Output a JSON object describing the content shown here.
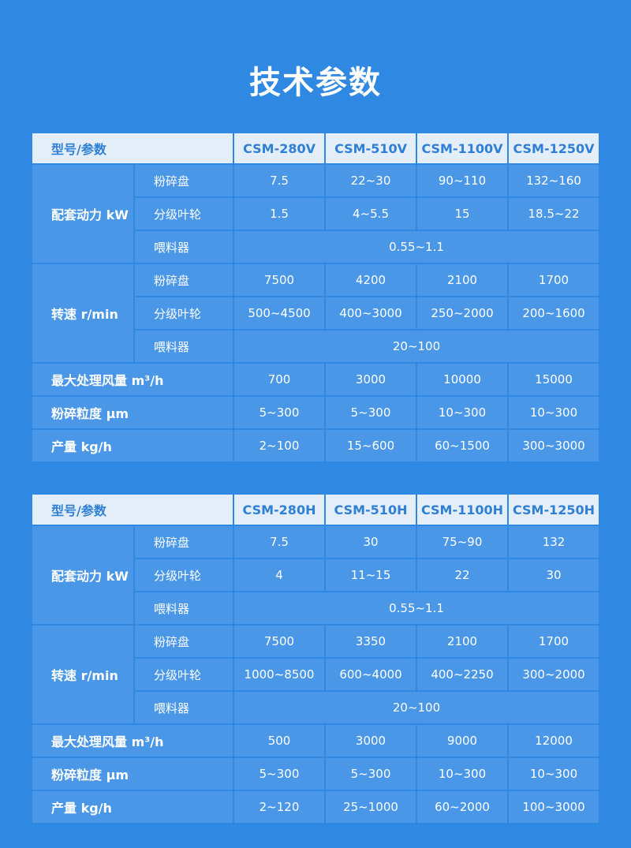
{
  "title": "技术参数",
  "tables": [
    {
      "header": [
        "型号/参数",
        "CSM-280V",
        "CSM-510V",
        "CSM-1100V",
        "CSM-1250V"
      ],
      "groups": [
        {
          "label": "配套动力 kW",
          "rows": [
            {
              "sub": "粉碎盘",
              "values": [
                "7.5",
                "22~30",
                "90~110",
                "132~160"
              ]
            },
            {
              "sub": "分级叶轮",
              "values": [
                "1.5",
                "4~5.5",
                "15",
                "18.5~22"
              ]
            },
            {
              "sub": "喂料器",
              "merged": "0.55~1.1"
            }
          ]
        },
        {
          "label": "转速 r/min",
          "rows": [
            {
              "sub": "粉碎盘",
              "values": [
                "7500",
                "4200",
                "2100",
                "1700"
              ]
            },
            {
              "sub": "分级叶轮",
              "values": [
                "500~4500",
                "400~3000",
                "250~2000",
                "200~1600"
              ]
            },
            {
              "sub": "喂料器",
              "merged": "20~100"
            }
          ]
        }
      ],
      "rows": [
        {
          "label": "最大处理风量 m³/h",
          "values": [
            "700",
            "3000",
            "10000",
            "15000"
          ]
        },
        {
          "label": "粉碎粒度 μm",
          "values": [
            "5~300",
            "5~300",
            "10~300",
            "10~300"
          ]
        },
        {
          "label": "产量 kg/h",
          "values": [
            "2~100",
            "15~600",
            "60~1500",
            "300~3000"
          ]
        }
      ]
    },
    {
      "header": [
        "型号/参数",
        "CSM-280H",
        "CSM-510H",
        "CSM-1100H",
        "CSM-1250H"
      ],
      "groups": [
        {
          "label": "配套动力 kW",
          "rows": [
            {
              "sub": "粉碎盘",
              "values": [
                "7.5",
                "30",
                "75~90",
                "132"
              ]
            },
            {
              "sub": "分级叶轮",
              "values": [
                "4",
                "11~15",
                "22",
                "30"
              ]
            },
            {
              "sub": "喂料器",
              "merged": "0.55~1.1"
            }
          ]
        },
        {
          "label": "转速 r/min",
          "rows": [
            {
              "sub": "粉碎盘",
              "values": [
                "7500",
                "3350",
                "2100",
                "1700"
              ]
            },
            {
              "sub": "分级叶轮",
              "values": [
                "1000~8500",
                "600~4000",
                "400~2250",
                "300~2000"
              ]
            },
            {
              "sub": "喂料器",
              "merged": "20~100"
            }
          ]
        }
      ],
      "rows": [
        {
          "label": "最大处理风量 m³/h",
          "values": [
            "500",
            "3000",
            "9000",
            "12000"
          ]
        },
        {
          "label": "粉碎粒度 μm",
          "values": [
            "5~300",
            "5~300",
            "10~300",
            "10~300"
          ]
        },
        {
          "label": "产量 kg/h",
          "values": [
            "2~120",
            "25~1000",
            "60~2000",
            "100~3000"
          ]
        }
      ]
    }
  ]
}
